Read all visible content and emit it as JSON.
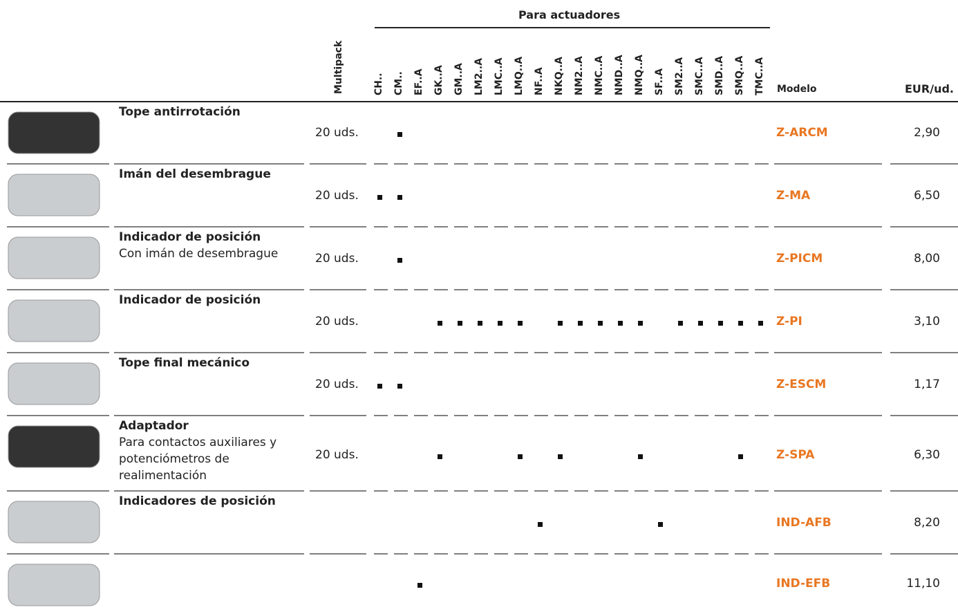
{
  "table": {
    "group_header": "Para actuadores",
    "columns": {
      "multipack": "Multipack",
      "actuators": [
        "CH..",
        "CM..",
        "EF..A",
        "GK..A",
        "GM..A",
        "LM2..A",
        "LMC..A",
        "LMQ..A",
        "NF..A",
        "NKQ..A",
        "NM2..A",
        "NMC..A",
        "NMD..A",
        "NMQ..A",
        "SF..A",
        "SM2..A",
        "SMC..A",
        "SMD..A",
        "SMQ..A",
        "TMC..A"
      ],
      "model": "Modelo",
      "price": "EUR/ud."
    },
    "rows": [
      {
        "title": "Tope antirrotación",
        "multipack": "20 uds.",
        "actuators": [
          1
        ],
        "model": "Z-ARCM",
        "price": "2,90"
      },
      {
        "title": "Imán del desembrague",
        "multipack": "20 uds.",
        "actuators": [
          0,
          1
        ],
        "model": "Z-MA",
        "price": "6,50"
      },
      {
        "title": "Indicador de posición",
        "subtitle": "Con imán de desembrague",
        "multipack": "20 uds.",
        "actuators": [
          1
        ],
        "model": "Z-PICM",
        "price": "8,00"
      },
      {
        "title": "Indicador de posición",
        "multipack": "20 uds.",
        "actuators": [
          3,
          4,
          5,
          6,
          7,
          9,
          10,
          11,
          12,
          13,
          15,
          16,
          17,
          18,
          19
        ],
        "model": "Z-PI",
        "price": "3,10"
      },
      {
        "title": "Tope final mecánico",
        "multipack": "20 uds.",
        "actuators": [
          0,
          1
        ],
        "model": "Z-ESCM",
        "price": "1,17"
      },
      {
        "title": "Adaptador",
        "subtitle": "Para contactos auxiliares y potenciómetros de realimentación",
        "multipack": "20 uds.",
        "actuators": [
          3,
          7,
          9,
          13,
          18
        ],
        "model": "Z-SPA",
        "price": "6,30"
      },
      {
        "title": "Indicadores de posición",
        "actuators": [
          8,
          14
        ],
        "model": "IND-AFB",
        "price": "8,20"
      },
      {
        "actuators": [
          2
        ],
        "model": "IND-EFB",
        "price": "11,10"
      }
    ]
  }
}
